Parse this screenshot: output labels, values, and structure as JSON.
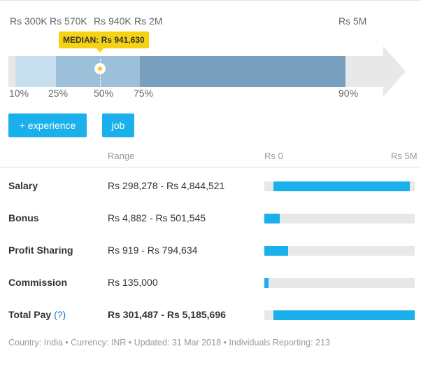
{
  "percentile_chart": {
    "scale_max_label": "Rs 5M",
    "values": {
      "p10": "Rs 300K",
      "p25": "Rs 570K",
      "p50": "Rs 940K",
      "p75": "Rs 2M",
      "p90": "Rs 5M"
    },
    "percentile_labels": {
      "p10": "10%",
      "p25": "25%",
      "p50": "50%",
      "p75": "75%",
      "p90": "90%"
    },
    "median_label": "MEDIAN: Rs 941,630",
    "median_icon": "star-icon",
    "colors": {
      "band_10_25": "#c8dff0",
      "band_25_75": "#9cbfda",
      "band_75_90": "#799fbf",
      "track": "#e8e8e8",
      "median_tag": "#f6d312"
    }
  },
  "buttons": {
    "experience": "+ experience",
    "job": "job"
  },
  "table": {
    "header_range": "Range",
    "header_min": "Rs 0",
    "header_max": "Rs 5M",
    "rows": [
      {
        "label": "Salary",
        "range": "Rs 298,278 - Rs 4,844,521",
        "bar_min": 298278,
        "bar_max": 4844521
      },
      {
        "label": "Bonus",
        "range": "Rs 4,882 - Rs 501,545",
        "bar_min": 4882,
        "bar_max": 501545
      },
      {
        "label": "Profit Sharing",
        "range": "Rs 919 - Rs 794,634",
        "bar_min": 919,
        "bar_max": 794634
      },
      {
        "label": "Commission",
        "range": "Rs 135,000",
        "bar_min": 0,
        "bar_max": 135000
      },
      {
        "label": "Total Pay",
        "help": "(?)",
        "range": "Rs 301,487 - Rs 5,185,696",
        "bar_min": 301487,
        "bar_max": 5185696
      }
    ],
    "scale_max": 5000000,
    "accent": "#1ab0ec"
  },
  "footer": "Country: India • Currency: INR • Updated: 31 Mar 2018 • Individuals Reporting: 213"
}
